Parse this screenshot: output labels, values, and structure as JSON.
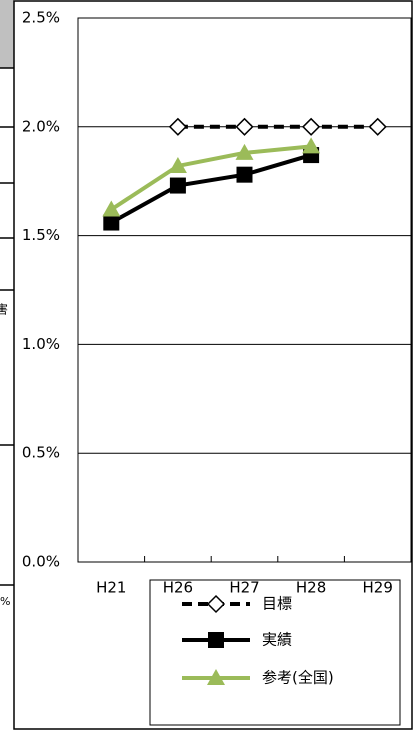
{
  "chart_data": {
    "type": "line",
    "categories": [
      "H21",
      "H26",
      "H27",
      "H28",
      "H29"
    ],
    "series": [
      {
        "name": "目標",
        "color": "#000000",
        "values": [
          null,
          2.0,
          2.0,
          2.0,
          2.0
        ]
      },
      {
        "name": "実績",
        "color": "#000000",
        "values": [
          1.56,
          1.73,
          1.78,
          1.87,
          null
        ]
      },
      {
        "name": "参考(全国)",
        "color": "#9bbb59",
        "values": [
          1.62,
          1.82,
          1.88,
          1.91,
          null
        ]
      }
    ],
    "ylim": [
      0,
      2.5
    ],
    "yticks": [
      {
        "value": 0,
        "label": "0.0%"
      },
      {
        "value": 0.5,
        "label": "0.5%"
      },
      {
        "value": 1.0,
        "label": "1.0%"
      },
      {
        "value": 1.5,
        "label": "1.5%"
      },
      {
        "value": 2.0,
        "label": "2.0%"
      },
      {
        "value": 2.5,
        "label": "2.5%"
      }
    ],
    "grid": true,
    "legend": "bottom-right"
  },
  "left_table_fragments": [
    "害",
    "%"
  ]
}
